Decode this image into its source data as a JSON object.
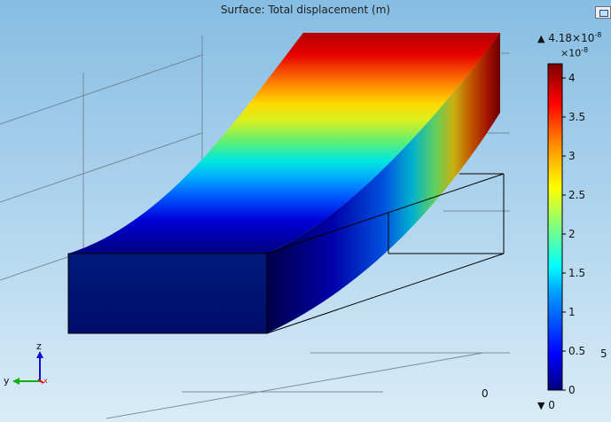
{
  "title": "Surface: Total displacement (m)",
  "colorbar": {
    "max_label": "4.18×10",
    "max_exp": "-8",
    "mult_label": "×10",
    "mult_exp": "-8",
    "min_label": "0",
    "ticks": [
      "4",
      "3.5",
      "3",
      "2.5",
      "2",
      "1.5",
      "1",
      "0.5",
      "0"
    ],
    "max_value": 4.18,
    "colors": [
      "#00007f",
      "#0000ff",
      "#00a0ff",
      "#00ffff",
      "#80ff80",
      "#ffff00",
      "#ff9000",
      "#ff0000",
      "#800000"
    ]
  },
  "axis_triad": {
    "z": "z",
    "y": "y",
    "x": "x"
  },
  "edge_label": "5",
  "floor_label": "0",
  "icons": {
    "view_button": "window-icon",
    "max_marker": "triangle-up-icon",
    "min_marker": "triangle-down-icon"
  }
}
